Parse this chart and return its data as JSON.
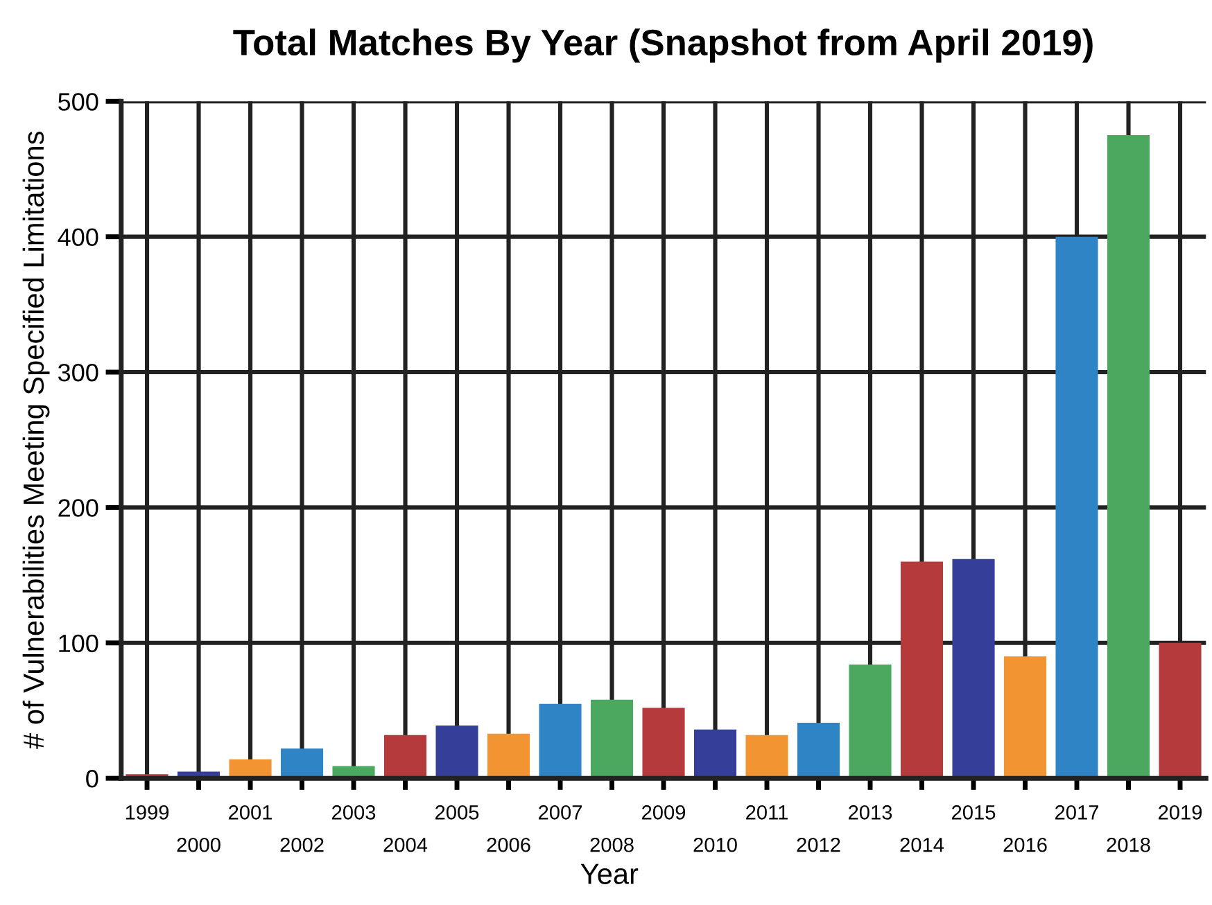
{
  "chart_data": {
    "type": "bar",
    "title": "Total Matches By Year (Snapshot from April 2019)",
    "xlabel": "Year",
    "ylabel": "# of Vulnerabilities Meeting Specified Limitations",
    "categories": [
      "1999",
      "2000",
      "2001",
      "2002",
      "2003",
      "2004",
      "2005",
      "2006",
      "2007",
      "2008",
      "2009",
      "2010",
      "2011",
      "2012",
      "2013",
      "2014",
      "2015",
      "2016",
      "2017",
      "2018",
      "2019"
    ],
    "values": [
      3,
      5,
      14,
      22,
      9,
      32,
      39,
      33,
      55,
      58,
      52,
      36,
      32,
      41,
      84,
      160,
      162,
      90,
      400,
      475,
      100
    ],
    "colors": [
      "#b53a3c",
      "#353f99",
      "#f39433",
      "#2f84c5",
      "#4aa95e",
      "#b53a3c",
      "#353f99",
      "#f39433",
      "#2f84c5",
      "#4aa95e",
      "#b53a3c",
      "#353f99",
      "#f39433",
      "#2f84c5",
      "#4aa95e",
      "#b53a3c",
      "#353f99",
      "#f39433",
      "#2f84c5",
      "#4aa95e",
      "#b53a3c"
    ],
    "ylim": [
      0,
      500
    ],
    "yticks": [
      0,
      100,
      200,
      300,
      400,
      500
    ],
    "grid": true
  }
}
